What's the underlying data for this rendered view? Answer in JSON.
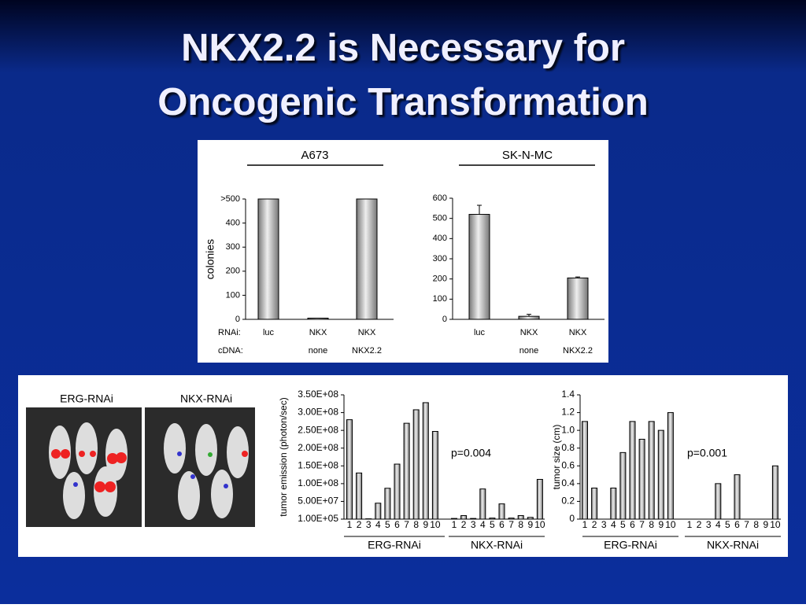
{
  "title_lines": [
    "NKX2.2 is Necessary for",
    "Oncogenic Transformation"
  ],
  "images": [
    {
      "label": "ERG-RNAi"
    },
    {
      "label": "NKX-RNAi"
    }
  ],
  "chart_data": [
    {
      "type": "bar",
      "title": "A673",
      "ylabel": "colonies",
      "row_labels": [
        "RNAi:",
        "cDNA:"
      ],
      "categories": [
        "luc",
        "NKX",
        "NKX"
      ],
      "sub_categories": [
        null,
        "none",
        "NKX2.2"
      ],
      "values": [
        500,
        5,
        500
      ],
      "ylim": [
        0,
        500
      ],
      "yticks": [
        0,
        100,
        200,
        300,
        400,
        {
          "value": 500,
          "label": ">500"
        }
      ]
    },
    {
      "type": "bar",
      "title": "SK-N-MC",
      "categories": [
        "luc",
        "NKX",
        "NKX"
      ],
      "sub_categories": [
        null,
        "none",
        "NKX2.2"
      ],
      "values": [
        520,
        15,
        205
      ],
      "errors": [
        45,
        10,
        5
      ],
      "ylim": [
        0,
        600
      ],
      "yticks": [
        0,
        100,
        200,
        300,
        400,
        500,
        600
      ]
    },
    {
      "type": "bar",
      "ylabel": "tumor emission (photon/sec)",
      "annotation": "p=0.004",
      "groups": [
        "ERG-RNAi",
        "NKX-RNAi"
      ],
      "categories": [
        "1",
        "2",
        "3",
        "4",
        "5",
        "6",
        "7",
        "8",
        "9",
        "10",
        "1",
        "2",
        "3",
        "4",
        "5",
        "6",
        "7",
        "8",
        "9",
        "10"
      ],
      "values": [
        280000000,
        130000000,
        1000000,
        45000000,
        87000000,
        155000000,
        270000000,
        308000000,
        328000000,
        247000000,
        2000000,
        10000000,
        2000000,
        85000000,
        3000000,
        43000000,
        3000000,
        10000000,
        5000000,
        112000000
      ],
      "ylim": [
        100000,
        350000000
      ],
      "yticks": [
        {
          "value": 100000,
          "label": "1.00E+05"
        },
        {
          "value": 50000000,
          "label": "5.00E+07"
        },
        {
          "value": 100000000,
          "label": "1.00E+08"
        },
        {
          "value": 150000000,
          "label": "1.50E+08"
        },
        {
          "value": 200000000,
          "label": "2.00E+08"
        },
        {
          "value": 250000000,
          "label": "2.50E+08"
        },
        {
          "value": 300000000,
          "label": "3.00E+08"
        },
        {
          "value": 350000000,
          "label": "3.50E+08"
        }
      ]
    },
    {
      "type": "bar",
      "ylabel": "tumor size (cm)",
      "annotation": "p=0.001",
      "groups": [
        "ERG-RNAi",
        "NKX-RNAi"
      ],
      "categories": [
        "1",
        "2",
        "3",
        "4",
        "5",
        "6",
        "7",
        "8",
        "9",
        "10",
        "1",
        "2",
        "3",
        "4",
        "5",
        "6",
        "7",
        "8",
        "9",
        "10"
      ],
      "values": [
        1.1,
        0.35,
        0,
        0.35,
        0.75,
        1.1,
        0.9,
        1.1,
        1.0,
        1.2,
        0,
        0,
        0,
        0.4,
        0,
        0.5,
        0,
        0,
        0,
        0.6
      ],
      "ylim": [
        0,
        1.4
      ],
      "yticks": [
        0,
        0.2,
        0.4,
        0.6,
        0.8,
        {
          "value": 1,
          "label": "1.0"
        },
        1.2,
        1.4
      ]
    }
  ]
}
